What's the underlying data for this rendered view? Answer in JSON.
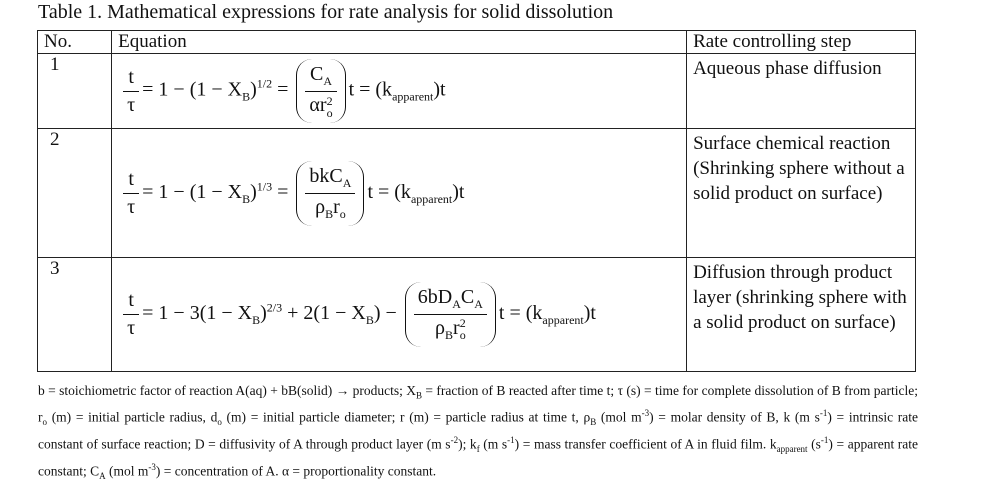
{
  "table": {
    "title": "Table 1. Mathematical expressions for rate analysis for solid dissolution",
    "header": [
      "No.",
      "Equation",
      "Rate controlling step"
    ],
    "rows": [
      {
        "no": "1",
        "equation": [
          {
            "frac": [
              [
                "t"
              ],
              [
                "τ"
              ]
            ]
          },
          "= 1 − (1 − X",
          {
            "sub": "B"
          },
          ")",
          {
            "sup": "1/2"
          },
          " = ",
          {
            "frac": [
              [
                "C",
                {
                  "sub": "A"
                }
              ],
              [
                "αr",
                {
                  "sub": "o",
                  "sup": "2"
                }
              ]
            ],
            "paren": true
          },
          "t = (k",
          {
            "sub": "apparent"
          },
          ")t"
        ],
        "step": "Aqueous phase diffusion"
      },
      {
        "no": "2",
        "equation": [
          {
            "frac": [
              [
                "t"
              ],
              [
                "τ"
              ]
            ]
          },
          "= 1 − (1 − X",
          {
            "sub": "B"
          },
          ")",
          {
            "sup": "1/3"
          },
          " = ",
          {
            "frac": [
              [
                "bkC",
                {
                  "sub": "A"
                }
              ],
              [
                "ρ",
                {
                  "sub": "B"
                },
                "r",
                {
                  "sub": "o"
                }
              ]
            ],
            "paren": true
          },
          "t = (k",
          {
            "sub": "apparent"
          },
          ")t"
        ],
        "step": "Surface chemical reaction (Shrinking sphere without a solid product on surface)"
      },
      {
        "no": "3",
        "equation": [
          {
            "frac": [
              [
                "t"
              ],
              [
                "τ"
              ]
            ]
          },
          "= 1 − 3(1 − X",
          {
            "sub": "B"
          },
          ")",
          {
            "sup": "2/3"
          },
          " + 2(1 − X",
          {
            "sub": "B"
          },
          ") − ",
          {
            "frac": [
              [
                "6bD",
                {
                  "sub": "A"
                },
                "C",
                {
                  "sub": "A"
                }
              ],
              [
                "ρ",
                {
                  "sub": "B"
                },
                "r",
                {
                  "sub": "o",
                  "sup": "2"
                }
              ]
            ],
            "paren": true
          },
          "t = (k",
          {
            "sub": "apparent"
          },
          ")t"
        ],
        "step": "Diffusion through product layer (shrinking sphere with a solid product on surface)"
      }
    ]
  },
  "footnote": [
    "b = stoichiometric factor of reaction A(aq) + bB(solid) → products; X",
    {
      "sub": "B"
    },
    " = fraction of B reacted after time t; τ (s) = time for complete dissolution of B from particle; r",
    {
      "sub": "o"
    },
    " (m) = initial particle radius, d",
    {
      "sub": "o"
    },
    " (m) = initial particle diameter; r (m) = particle radius at time t, ρ",
    {
      "sub": "B"
    },
    " (mol m",
    {
      "sup": "-3"
    },
    ") = molar density of B, k (m s",
    {
      "sup": "-1"
    },
    ") = intrinsic rate constant of surface reaction; D = diffusivity of A through product layer (m s",
    {
      "sup": "-2"
    },
    "); k",
    {
      "sub": "f"
    },
    " (m s",
    {
      "sup": "-1"
    },
    ") = mass transfer coefficient of A in fluid film. k",
    {
      "sub": "apparent"
    },
    " (s",
    {
      "sup": "-1"
    },
    ") = apparent rate constant; C",
    {
      "sub": "A"
    },
    " (mol m",
    {
      "sup": "-3"
    },
    ") = concentration of A. α = proportionality constant."
  ]
}
